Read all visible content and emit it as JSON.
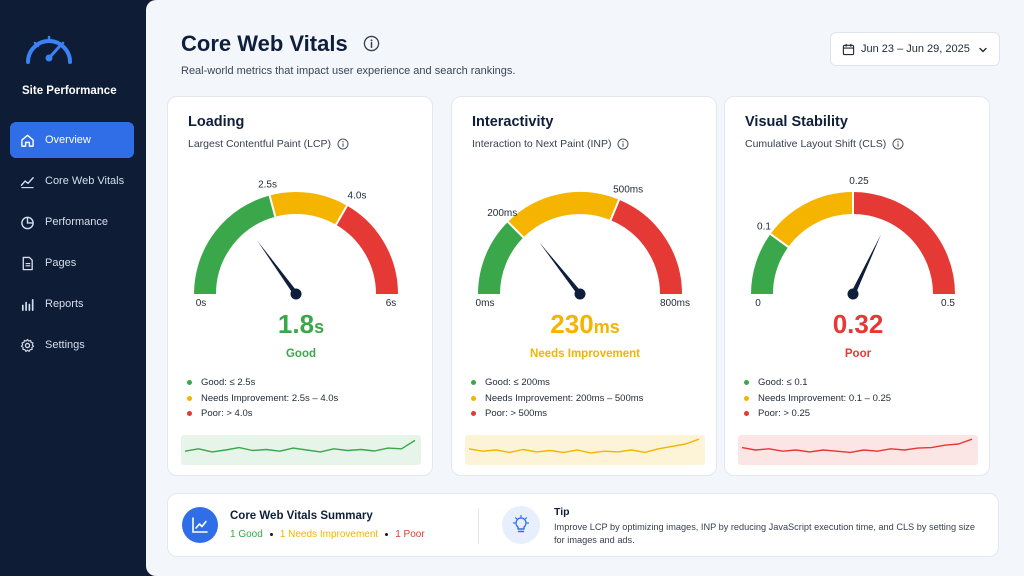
{
  "brand": {
    "title": "Site Performance",
    "icon": "speedometer-icon"
  },
  "nav": [
    {
      "label": "Overview",
      "icon": "home-icon",
      "active": true
    },
    {
      "label": "Core Web Vitals",
      "icon": "trend-icon",
      "active": false
    },
    {
      "label": "Performance",
      "icon": "pie-icon",
      "active": false
    },
    {
      "label": "Pages",
      "icon": "page-icon",
      "active": false
    },
    {
      "label": "Reports",
      "icon": "bar-chart-icon",
      "active": false
    },
    {
      "label": "Settings",
      "icon": "gear-icon",
      "active": false
    }
  ],
  "header": {
    "title": "Core Web Vitals",
    "subtitle": "Real-world metrics that impact user experience and search rankings.",
    "date_range": "Jun 23 – Jun 29, 2025"
  },
  "colors": {
    "good": "#3aa84a",
    "needs": "#f4b400",
    "poor": "#e53935",
    "accent": "#2f6ee6"
  },
  "cards": [
    {
      "title": "Loading",
      "subtitle": "Largest Contentful Paint (LCP)",
      "gauge": {
        "min": 0,
        "max": 6,
        "good_max": 2.5,
        "needs_max": 4.0,
        "value": 1.8
      },
      "labels": {
        "min": "0s",
        "t1": "2.5s",
        "t2": "4.0s",
        "max": "6s"
      },
      "value": "1.8",
      "unit": "s",
      "status": "Good",
      "status_color": "#3aa84a",
      "legend": [
        "Good: ≤ 2.5s",
        "Needs Improvement: 2.5s – 4.0s",
        "Poor: > 4.0s"
      ],
      "spark": {
        "color": "#3aa84a",
        "bg": "#e7f4ea",
        "values": [
          0.45,
          0.55,
          0.42,
          0.5,
          0.6,
          0.48,
          0.52,
          0.45,
          0.58,
          0.5,
          0.42,
          0.55,
          0.48,
          0.52,
          0.46,
          0.58,
          0.55,
          0.9
        ]
      }
    },
    {
      "title": "Interactivity",
      "subtitle": "Interaction to Next Paint (INP)",
      "gauge": {
        "min": 0,
        "max": 800,
        "good_max": 200,
        "needs_max": 500,
        "value": 230
      },
      "labels": {
        "min": "0ms",
        "t1": "200ms",
        "t2": "500ms",
        "max": "800ms"
      },
      "value": "230",
      "unit": "ms",
      "status": "Needs Improvement",
      "status_color": "#f4b400",
      "legend": [
        "Good: ≤ 200ms",
        "Needs Improvement: 200ms – 500ms",
        "Poor: > 500ms"
      ],
      "spark": {
        "color": "#f4b400",
        "bg": "#fdf4d8",
        "values": [
          0.55,
          0.45,
          0.5,
          0.4,
          0.52,
          0.42,
          0.48,
          0.4,
          0.5,
          0.38,
          0.45,
          0.42,
          0.5,
          0.4,
          0.55,
          0.65,
          0.75,
          0.95
        ]
      }
    },
    {
      "title": "Visual Stability",
      "subtitle": "Cumulative Layout Shift (CLS)",
      "gauge": {
        "min": 0,
        "max": 0.5,
        "good_max": 0.1,
        "needs_max": 0.25,
        "value": 0.32
      },
      "labels": {
        "min": "0",
        "t1": "0.1",
        "t2": "0.25",
        "max": "0.5"
      },
      "value": "0.32",
      "unit": "",
      "status": "Poor",
      "status_color": "#e53935",
      "legend": [
        "Good: ≤ 0.1",
        "Needs Improvement: 0.1 – 0.25",
        "Poor: > 0.25"
      ],
      "spark": {
        "color": "#e53935",
        "bg": "#fbe6e5",
        "values": [
          0.6,
          0.5,
          0.55,
          0.45,
          0.5,
          0.42,
          0.5,
          0.45,
          0.4,
          0.5,
          0.45,
          0.55,
          0.5,
          0.58,
          0.6,
          0.7,
          0.75,
          0.95
        ]
      }
    }
  ],
  "summary": {
    "title": "Core Web Vitals Summary",
    "good": "1 Good",
    "needs": "1 Needs Improvement",
    "poor": "1 Poor"
  },
  "tip": {
    "title": "Tip",
    "text": "Improve LCP by optimizing images, INP by reducing JavaScript execution time, and CLS by setting size for images and ads."
  }
}
